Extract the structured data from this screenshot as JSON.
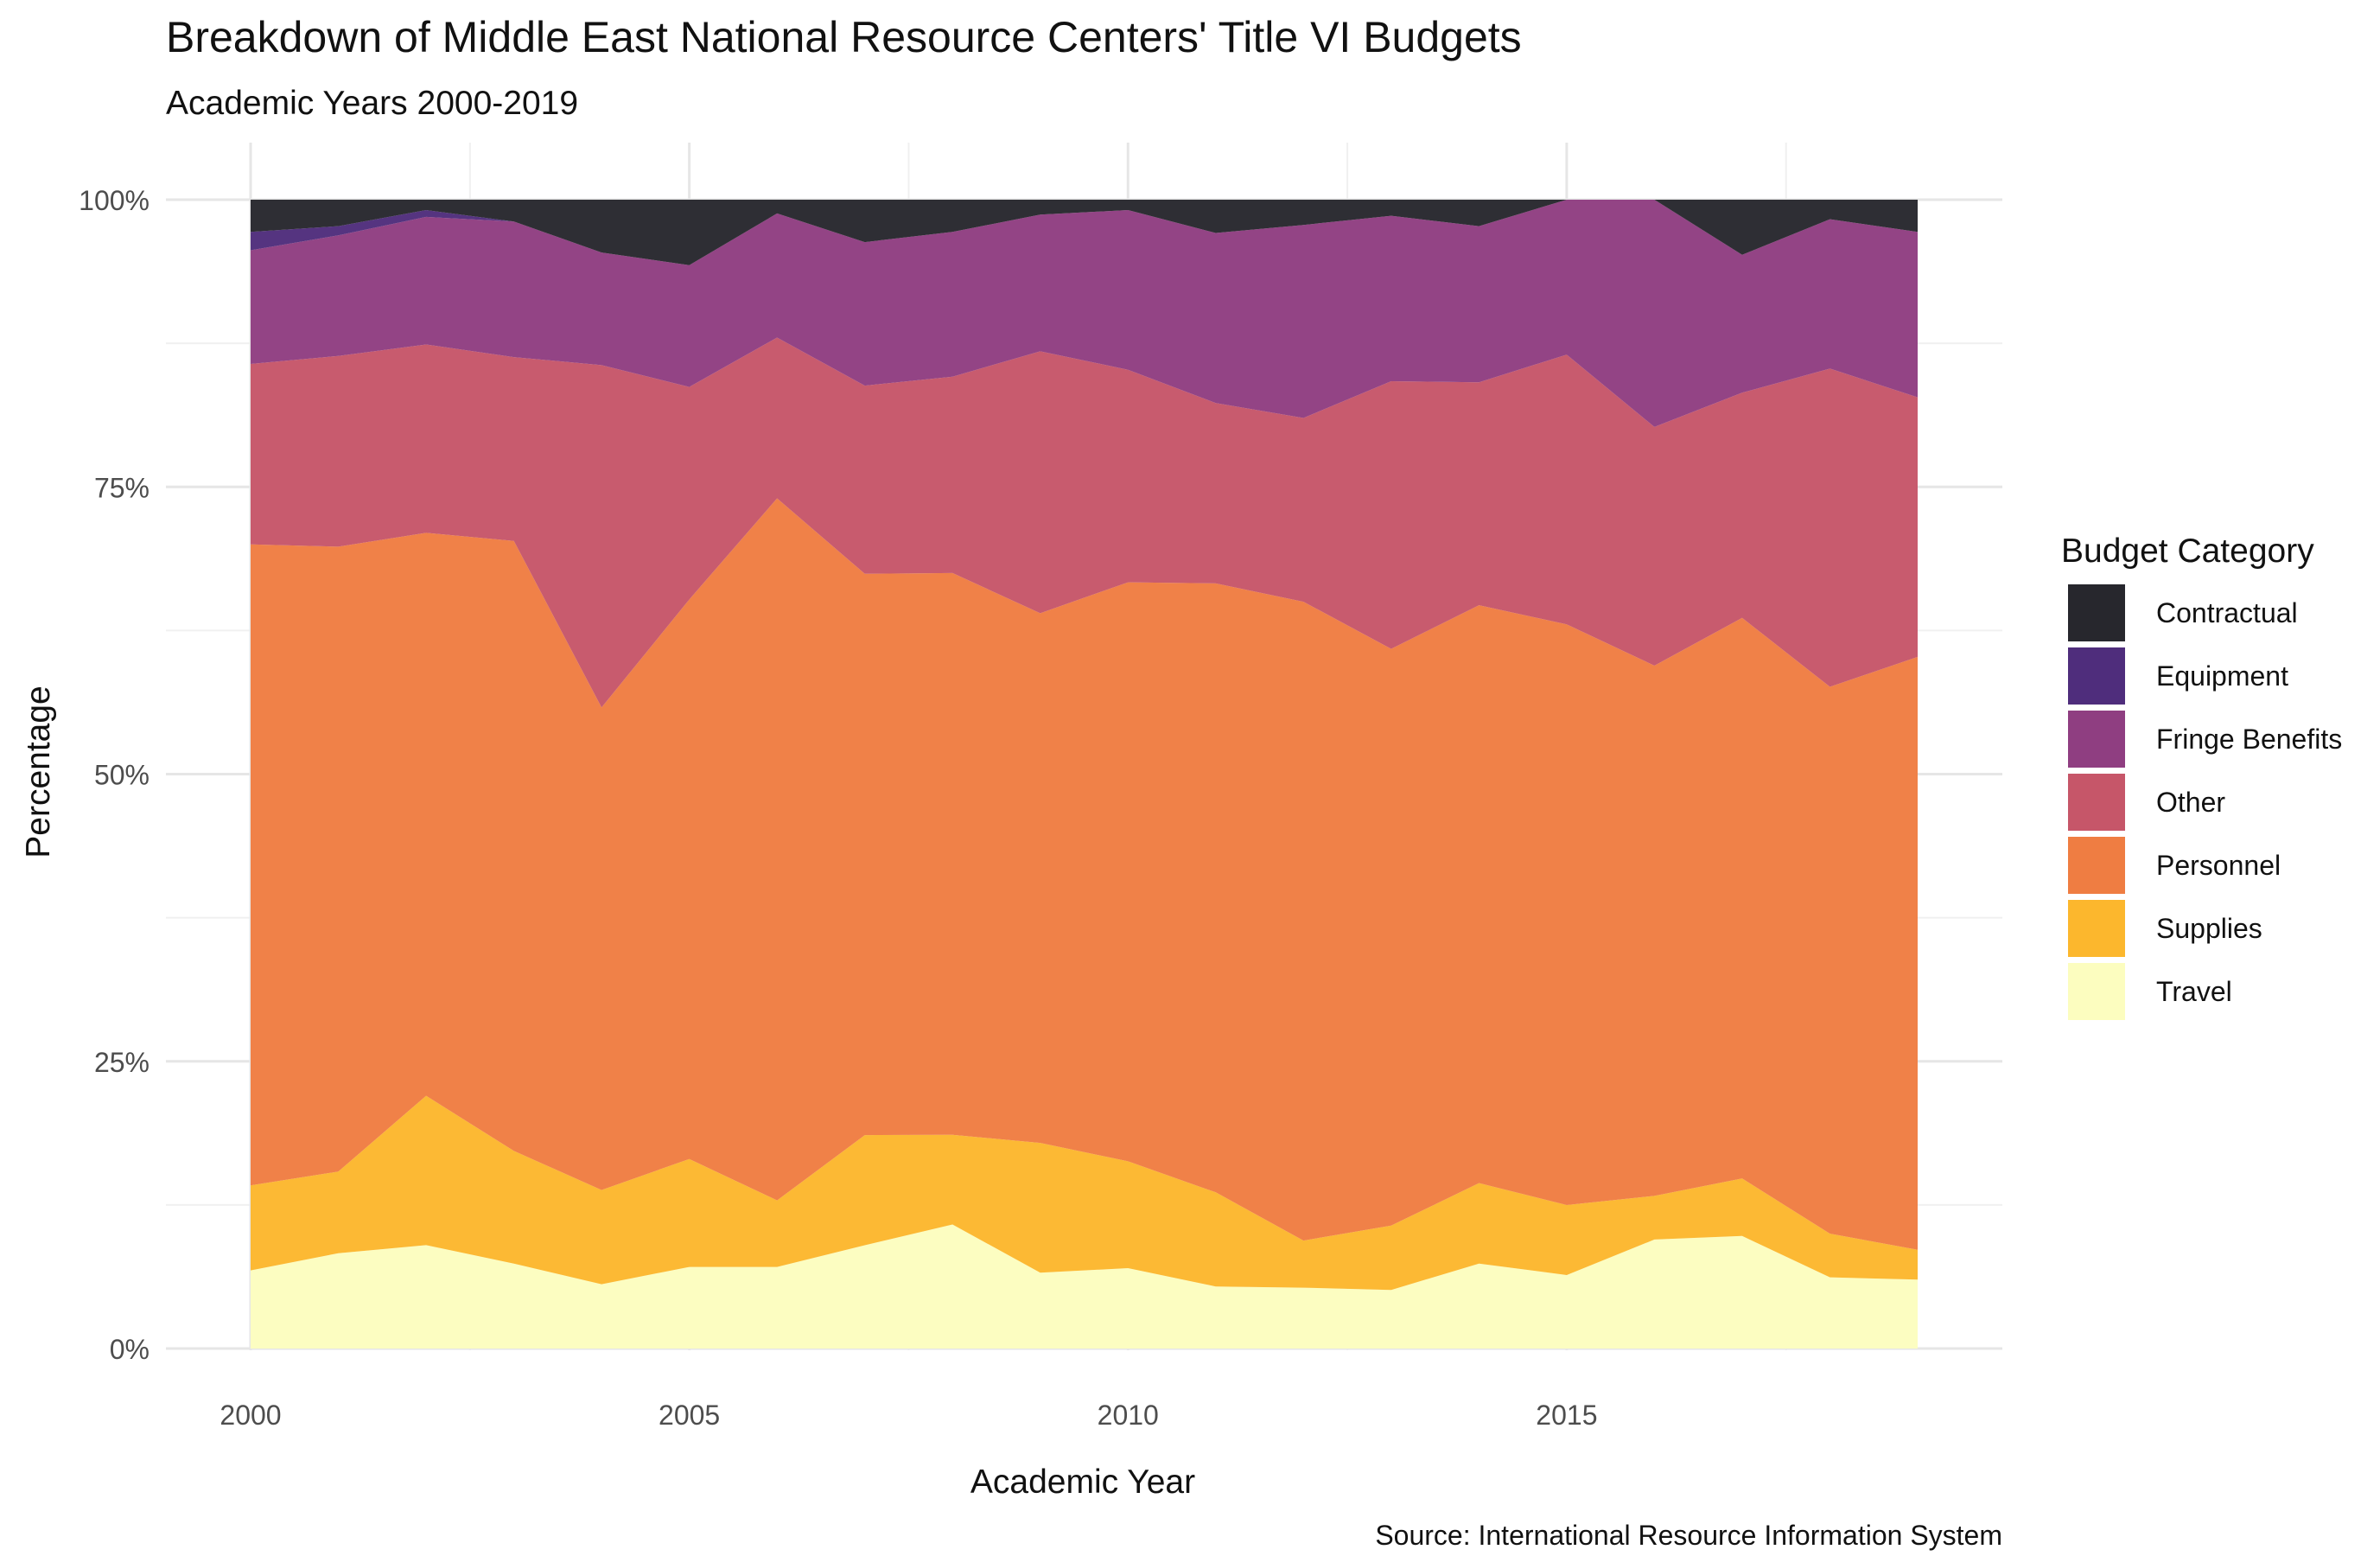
{
  "chart_data": {
    "type": "area",
    "stacked": true,
    "normalized_percent": true,
    "title": "Breakdown of Middle East National Resource Centers' Title VI Budgets",
    "subtitle": "Academic Years 2000-2019",
    "xlabel": "Academic Year",
    "ylabel": "Percentage",
    "caption": "Source: International Resource Information System",
    "xlim": [
      2000,
      2019
    ],
    "ylim": [
      0,
      100
    ],
    "x_ticks": [
      {
        "value": 2000,
        "label": "2000"
      },
      {
        "value": 2005,
        "label": "2005"
      },
      {
        "value": 2010,
        "label": "2010"
      },
      {
        "value": 2015,
        "label": "2015"
      }
    ],
    "y_ticks": [
      {
        "value": 0,
        "label": "0%"
      },
      {
        "value": 25,
        "label": "25%"
      },
      {
        "value": 50,
        "label": "50%"
      },
      {
        "value": 75,
        "label": "75%"
      },
      {
        "value": 100,
        "label": "100%"
      }
    ],
    "grid": true,
    "legend": {
      "title": "Budget Category",
      "position": "right"
    },
    "x": [
      2000,
      2001,
      2002,
      2003,
      2004,
      2005,
      2006,
      2007,
      2008,
      2009,
      2010,
      2011,
      2012,
      2013,
      2014,
      2015,
      2016,
      2017,
      2018,
      2019
    ],
    "series": [
      {
        "name": "Travel",
        "color": "#fcfdbf",
        "values": [
          6.8,
          8.3,
          9.0,
          7.4,
          5.6,
          7.1,
          7.1,
          9.0,
          10.8,
          6.6,
          7.0,
          5.4,
          5.3,
          5.1,
          7.4,
          6.4,
          9.5,
          9.8,
          6.2,
          6.0
        ]
      },
      {
        "name": "Supplies",
        "color": "#fcb72d",
        "values": [
          7.4,
          7.1,
          13.0,
          9.8,
          8.2,
          9.4,
          5.8,
          9.6,
          7.8,
          11.3,
          9.3,
          8.2,
          4.1,
          5.6,
          7.0,
          6.1,
          3.8,
          5.0,
          3.8,
          2.6
        ]
      },
      {
        "name": "Personnel",
        "color": "#ef7d42",
        "values": [
          55.8,
          54.4,
          49.0,
          53.1,
          42.0,
          48.7,
          61.1,
          48.9,
          48.9,
          46.1,
          50.4,
          53.0,
          55.6,
          50.2,
          50.3,
          50.6,
          46.2,
          48.8,
          47.6,
          51.6
        ]
      },
      {
        "name": "Other",
        "color": "#c65669",
        "values": [
          15.7,
          16.6,
          16.4,
          16.0,
          29.8,
          18.5,
          14.0,
          16.4,
          17.1,
          22.8,
          18.5,
          15.7,
          16.0,
          23.3,
          19.4,
          23.5,
          20.8,
          19.6,
          27.7,
          22.6
        ]
      },
      {
        "name": "Fringe Benefits",
        "color": "#8f3e81",
        "values": [
          9.9,
          10.5,
          11.1,
          11.8,
          9.8,
          10.6,
          10.8,
          12.5,
          12.6,
          11.9,
          13.9,
          14.8,
          16.8,
          14.4,
          13.6,
          13.5,
          19.8,
          12.0,
          13.0,
          14.4
        ]
      },
      {
        "name": "Equipment",
        "color": "#4f2d7c",
        "values": [
          1.6,
          0.8,
          0.6,
          0.0,
          0.0,
          0.0,
          0.0,
          0.0,
          0.0,
          0.0,
          0.0,
          0.0,
          0.0,
          0.0,
          0.0,
          0.0,
          0.0,
          0.0,
          0.0,
          0.0
        ]
      },
      {
        "name": "Contractual",
        "color": "#27272d",
        "values": [
          2.8,
          2.3,
          0.9,
          1.9,
          4.6,
          5.7,
          1.2,
          3.7,
          2.8,
          1.3,
          0.9,
          2.9,
          2.2,
          1.4,
          2.3,
          0.0,
          0.0,
          4.8,
          1.7,
          2.8
        ]
      }
    ],
    "legend_order": [
      "Contractual",
      "Equipment",
      "Fringe Benefits",
      "Other",
      "Personnel",
      "Supplies",
      "Travel"
    ]
  }
}
